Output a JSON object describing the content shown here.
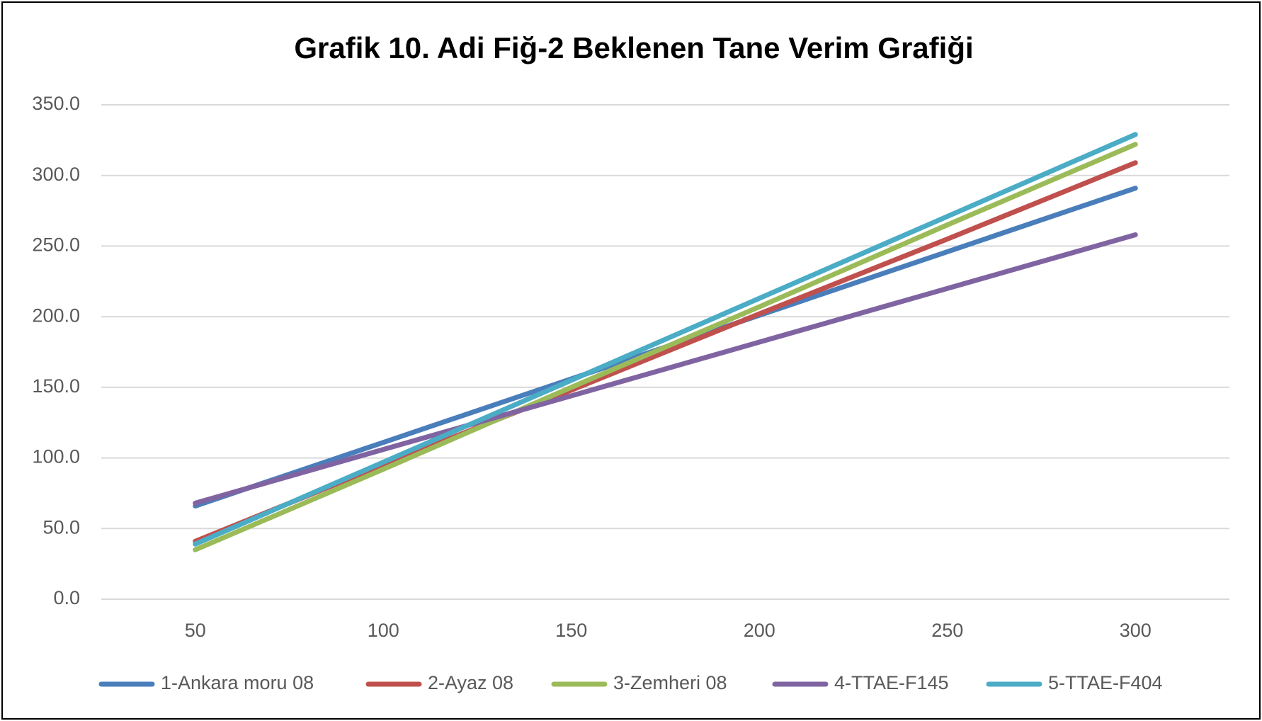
{
  "chart_data": {
    "type": "line",
    "title": "Grafik  10. Adi Fiğ-2 Beklenen Tane Verim Grafiği",
    "categories": [
      "50",
      "100",
      "150",
      "200",
      "250",
      "300"
    ],
    "series": [
      {
        "name": "1-Ankara moru 08",
        "color": "#4a7ebb",
        "values": [
          66,
          111,
          156,
          201,
          246,
          291
        ]
      },
      {
        "name": "2-Ayaz 08",
        "color": "#c0504d",
        "values": [
          41,
          95,
          148,
          202,
          255,
          309
        ]
      },
      {
        "name": "3-Zemheri 08",
        "color": "#9bbb59",
        "values": [
          35,
          92,
          150,
          207,
          265,
          322
        ]
      },
      {
        "name": "4-TTAE-F145",
        "color": "#8064a2",
        "values": [
          68,
          106,
          144,
          182,
          220,
          258
        ]
      },
      {
        "name": "5-TTAE-F404",
        "color": "#4bacc6",
        "values": [
          39,
          97,
          155,
          213,
          271,
          329
        ]
      }
    ],
    "ylim": [
      0,
      350
    ],
    "yticks": [
      {
        "value": 0,
        "label": "0.0"
      },
      {
        "value": 50,
        "label": "50.0"
      },
      {
        "value": 100,
        "label": "100.0"
      },
      {
        "value": 150,
        "label": "150.0"
      },
      {
        "value": 200,
        "label": "200.0"
      },
      {
        "value": 250,
        "label": "250.0"
      },
      {
        "value": 300,
        "label": "300.0"
      },
      {
        "value": 350,
        "label": "350.0"
      }
    ],
    "grid": true,
    "legend": "bottom"
  }
}
